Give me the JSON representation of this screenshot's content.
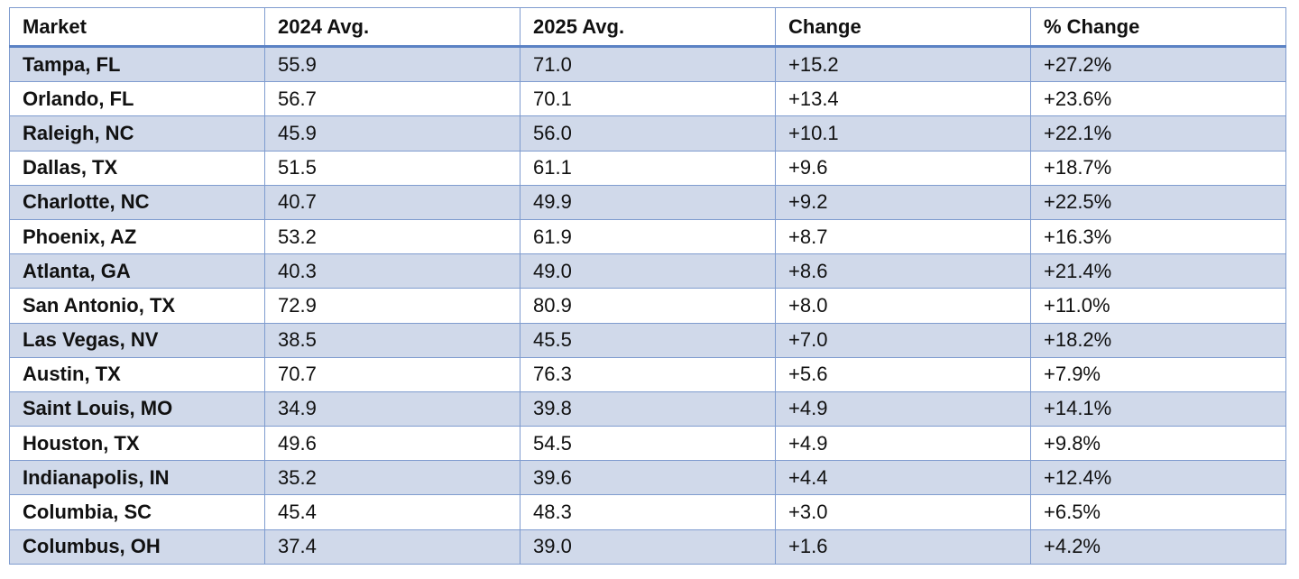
{
  "table": {
    "header": [
      "Market",
      "2024 Avg.",
      "2025 Avg.",
      "Change",
      "% Change"
    ],
    "rows": [
      [
        "Tampa, FL",
        "55.9",
        "71.0",
        "+15.2",
        "+27.2%"
      ],
      [
        "Orlando, FL",
        "56.7",
        "70.1",
        "+13.4",
        "+23.6%"
      ],
      [
        "Raleigh, NC",
        "45.9",
        "56.0",
        "+10.1",
        "+22.1%"
      ],
      [
        "Dallas, TX",
        "51.5",
        "61.1",
        "+9.6",
        "+18.7%"
      ],
      [
        "Charlotte, NC",
        "40.7",
        "49.9",
        "+9.2",
        "+22.5%"
      ],
      [
        "Phoenix, AZ",
        "53.2",
        "61.9",
        "+8.7",
        "+16.3%"
      ],
      [
        "Atlanta, GA",
        "40.3",
        "49.0",
        "+8.6",
        "+21.4%"
      ],
      [
        "San Antonio, TX",
        "72.9",
        "80.9",
        "+8.0",
        "+11.0%"
      ],
      [
        "Las Vegas, NV",
        "38.5",
        "45.5",
        "+7.0",
        "+18.2%"
      ],
      [
        "Austin, TX",
        "70.7",
        "76.3",
        "+5.6",
        "+7.9%"
      ],
      [
        "Saint Louis, MO",
        "34.9",
        "39.8",
        "+4.9",
        "+14.1%"
      ],
      [
        "Houston, TX",
        "49.6",
        "54.5",
        "+4.9",
        "+9.8%"
      ],
      [
        "Indianapolis, IN",
        "35.2",
        "39.6",
        "+4.4",
        "+12.4%"
      ],
      [
        "Columbia, SC",
        "45.4",
        "48.3",
        "+3.0",
        "+6.5%"
      ],
      [
        "Columbus, OH",
        "37.4",
        "39.0",
        "+1.6",
        "+4.2%"
      ]
    ]
  }
}
